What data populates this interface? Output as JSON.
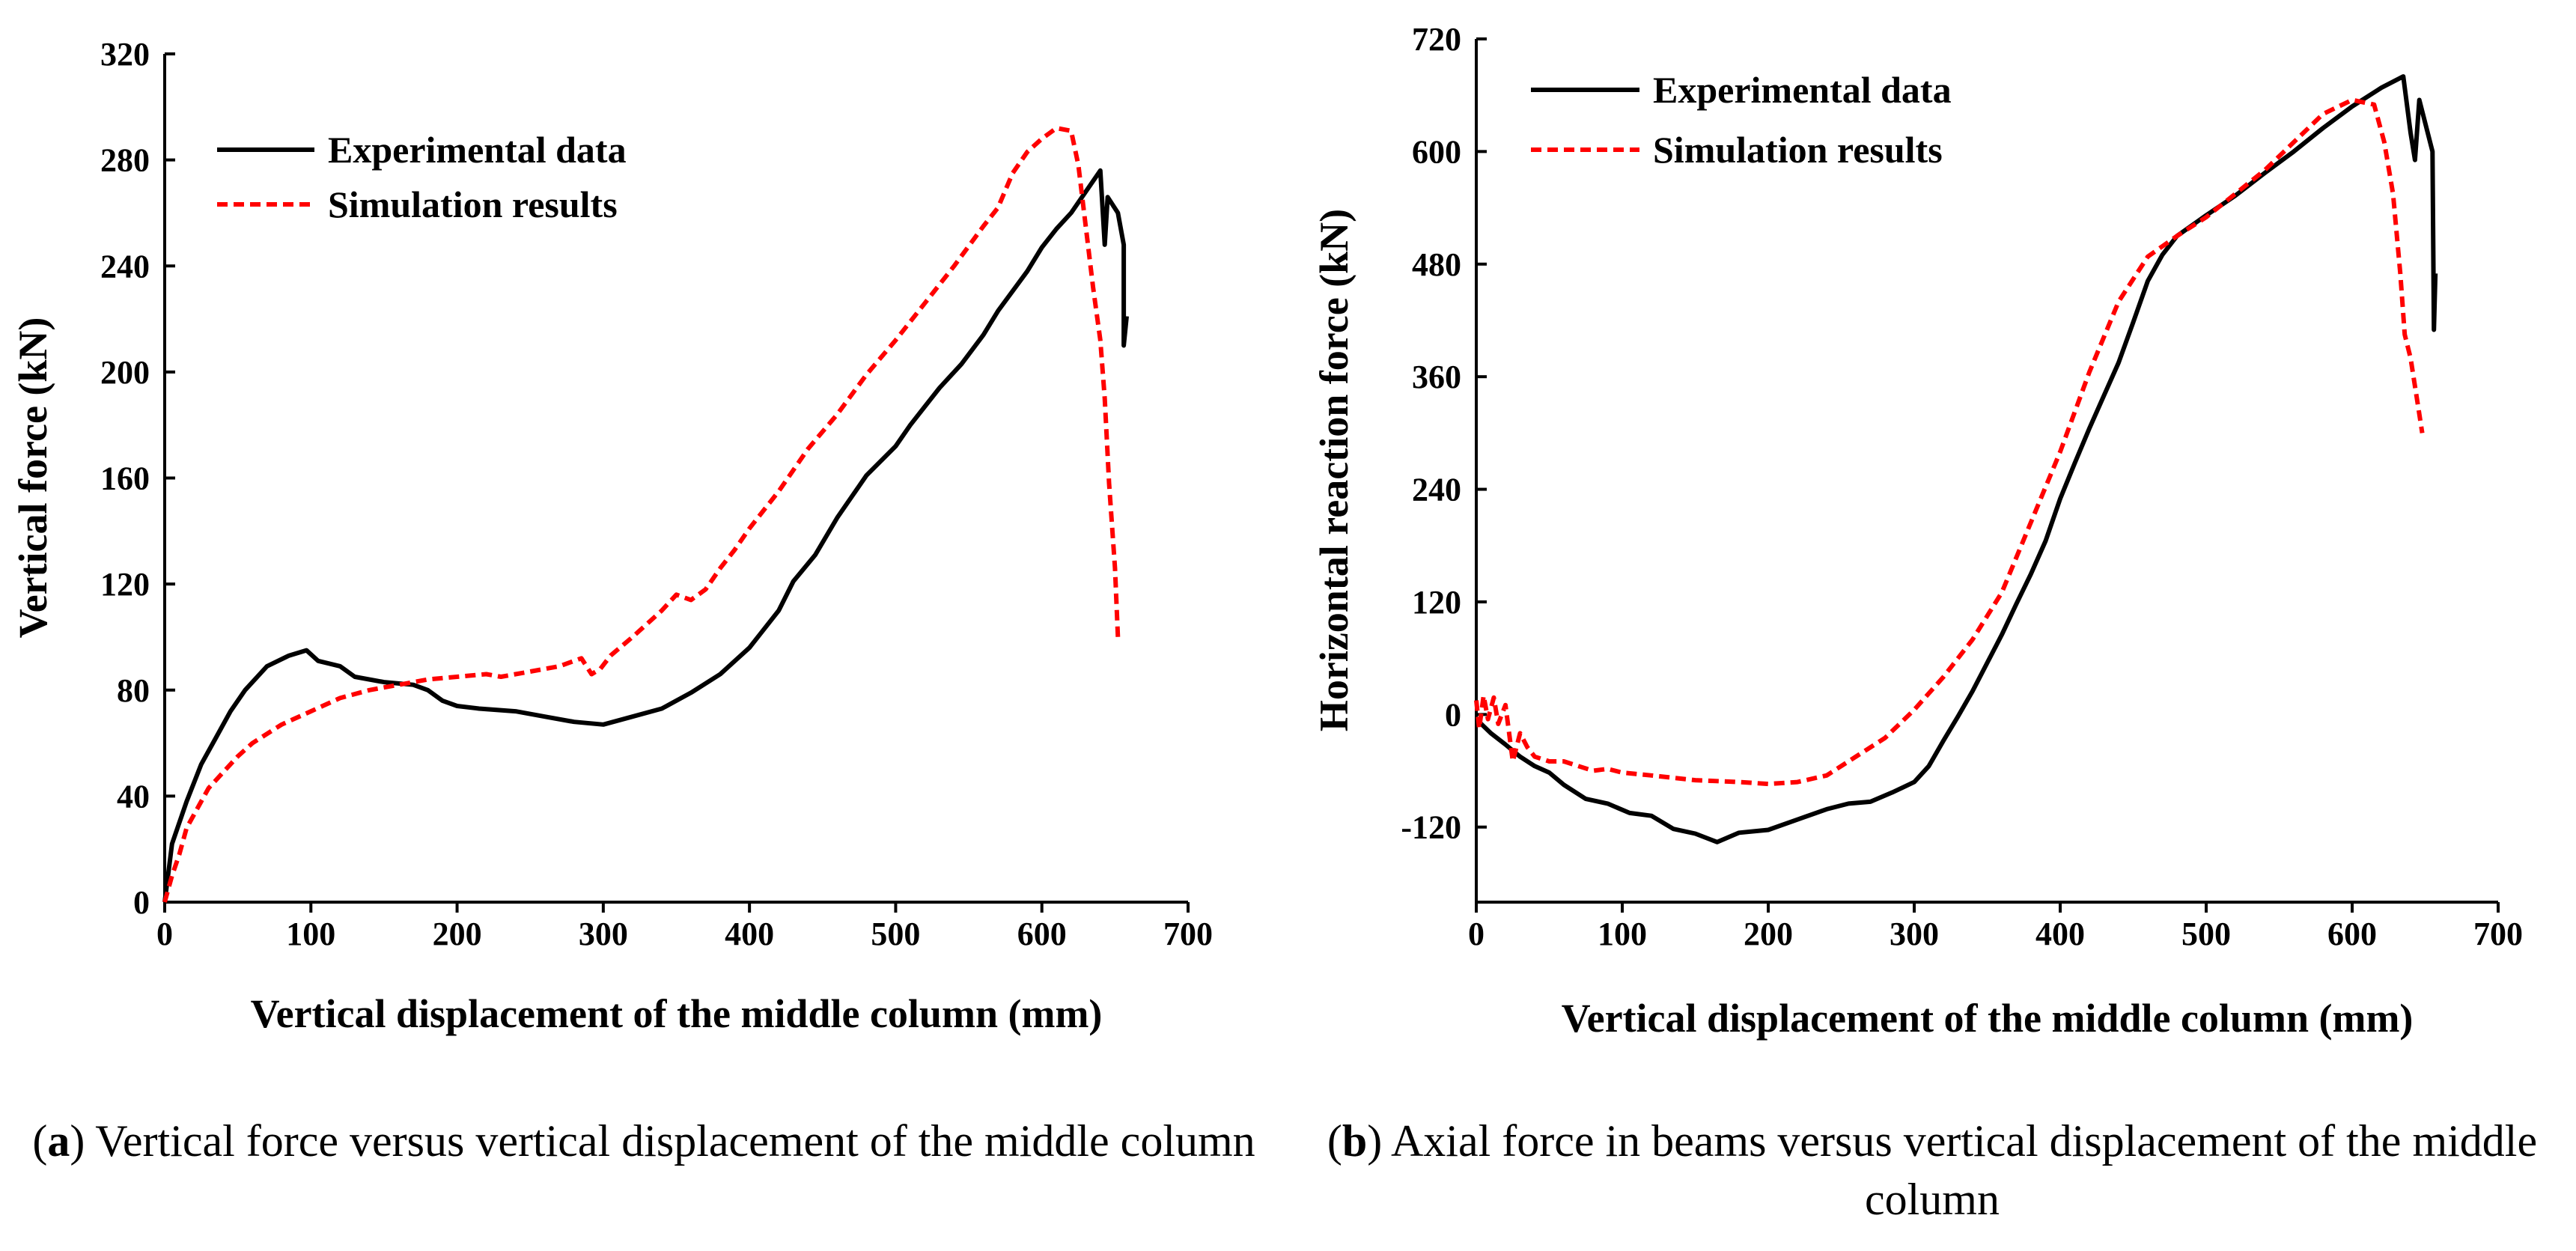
{
  "chart_data": [
    {
      "type": "line",
      "xlabel": "Vertical displacement of the middle column (mm)",
      "ylabel": "Vertical force (kN)",
      "xlim": [
        0,
        700
      ],
      "ylim": [
        0,
        320
      ],
      "xticks": [
        0,
        100,
        200,
        300,
        400,
        500,
        600,
        700
      ],
      "yticks": [
        0,
        40,
        80,
        120,
        160,
        200,
        240,
        280,
        320
      ],
      "legend_position": "top-left",
      "series": [
        {
          "name": "Experimental data",
          "color": "#000000",
          "style": "solid",
          "points": [
            [
              0,
              0
            ],
            [
              5,
              22
            ],
            [
              15,
              38
            ],
            [
              25,
              52
            ],
            [
              35,
              62
            ],
            [
              45,
              72
            ],
            [
              55,
              80
            ],
            [
              70,
              89
            ],
            [
              85,
              93
            ],
            [
              97,
              95
            ],
            [
              105,
              91
            ],
            [
              120,
              89
            ],
            [
              130,
              85
            ],
            [
              150,
              83
            ],
            [
              170,
              82
            ],
            [
              180,
              80
            ],
            [
              190,
              76
            ],
            [
              200,
              74
            ],
            [
              215,
              73
            ],
            [
              240,
              72
            ],
            [
              260,
              70
            ],
            [
              280,
              68
            ],
            [
              300,
              67
            ],
            [
              320,
              70
            ],
            [
              340,
              73
            ],
            [
              360,
              79
            ],
            [
              380,
              86
            ],
            [
              400,
              96
            ],
            [
              420,
              110
            ],
            [
              430,
              121
            ],
            [
              445,
              131
            ],
            [
              460,
              145
            ],
            [
              480,
              161
            ],
            [
              500,
              172
            ],
            [
              510,
              180
            ],
            [
              520,
              187
            ],
            [
              530,
              194
            ],
            [
              545,
              203
            ],
            [
              560,
              214
            ],
            [
              570,
              223
            ],
            [
              590,
              238
            ],
            [
              600,
              247
            ],
            [
              610,
              254
            ],
            [
              620,
              260
            ],
            [
              640,
              276
            ],
            [
              643,
              248
            ],
            [
              645,
              266
            ],
            [
              652,
              260
            ],
            [
              656,
              248
            ],
            [
              656,
              210
            ],
            [
              658,
              221
            ]
          ]
        },
        {
          "name": "Simulation results",
          "color": "#ff0000",
          "style": "dashed",
          "points": [
            [
              0,
              0
            ],
            [
              5,
              10
            ],
            [
              10,
              18
            ],
            [
              15,
              28
            ],
            [
              20,
              33
            ],
            [
              25,
              38
            ],
            [
              30,
              43
            ],
            [
              40,
              49
            ],
            [
              50,
              55
            ],
            [
              60,
              60
            ],
            [
              80,
              67
            ],
            [
              100,
              72
            ],
            [
              120,
              77
            ],
            [
              140,
              80
            ],
            [
              160,
              82
            ],
            [
              180,
              84
            ],
            [
              200,
              85
            ],
            [
              220,
              86
            ],
            [
              230,
              85
            ],
            [
              240,
              86
            ],
            [
              250,
              87
            ],
            [
              270,
              89
            ],
            [
              285,
              92
            ],
            [
              292,
              86
            ],
            [
              298,
              88
            ],
            [
              305,
              93
            ],
            [
              320,
              100
            ],
            [
              340,
              110
            ],
            [
              350,
              116
            ],
            [
              360,
              114
            ],
            [
              370,
              118
            ],
            [
              380,
              126
            ],
            [
              390,
              133
            ],
            [
              400,
              141
            ],
            [
              420,
              155
            ],
            [
              440,
              171
            ],
            [
              460,
              184
            ],
            [
              480,
              199
            ],
            [
              500,
              212
            ],
            [
              520,
              226
            ],
            [
              540,
              240
            ],
            [
              560,
              255
            ],
            [
              570,
              262
            ],
            [
              580,
              275
            ],
            [
              590,
              283
            ],
            [
              600,
              288
            ],
            [
              610,
              292
            ],
            [
              620,
              291
            ],
            [
              625,
              278
            ],
            [
              630,
              255
            ],
            [
              635,
              232
            ],
            [
              640,
              212
            ],
            [
              643,
              190
            ],
            [
              646,
              158
            ],
            [
              650,
              126
            ],
            [
              652,
              100
            ]
          ]
        }
      ]
    },
    {
      "type": "line",
      "xlabel": "Vertical displacement of the middle column (mm)",
      "ylabel": "Horizontal reaction force (kN)",
      "xlim": [
        0,
        700
      ],
      "ylim": [
        -200,
        720
      ],
      "xticks": [
        0,
        100,
        200,
        300,
        400,
        500,
        600,
        700
      ],
      "yticks": [
        -120,
        0,
        120,
        240,
        360,
        480,
        600,
        720
      ],
      "legend_position": "top-left",
      "series": [
        {
          "name": "Experimental data",
          "color": "#000000",
          "style": "solid",
          "points": [
            [
              0,
              -5
            ],
            [
              10,
              -20
            ],
            [
              20,
              -32
            ],
            [
              30,
              -45
            ],
            [
              40,
              -55
            ],
            [
              50,
              -62
            ],
            [
              60,
              -75
            ],
            [
              75,
              -90
            ],
            [
              90,
              -95
            ],
            [
              105,
              -105
            ],
            [
              120,
              -108
            ],
            [
              135,
              -122
            ],
            [
              150,
              -127
            ],
            [
              165,
              -136
            ],
            [
              180,
              -126
            ],
            [
              200,
              -123
            ],
            [
              220,
              -112
            ],
            [
              240,
              -101
            ],
            [
              255,
              -95
            ],
            [
              270,
              -93
            ],
            [
              285,
              -83
            ],
            [
              300,
              -72
            ],
            [
              310,
              -55
            ],
            [
              320,
              -28
            ],
            [
              330,
              -2
            ],
            [
              340,
              25
            ],
            [
              350,
              55
            ],
            [
              360,
              85
            ],
            [
              370,
              118
            ],
            [
              380,
              150
            ],
            [
              390,
              185
            ],
            [
              400,
              230
            ],
            [
              410,
              268
            ],
            [
              420,
              305
            ],
            [
              430,
              340
            ],
            [
              440,
              375
            ],
            [
              450,
              418
            ],
            [
              460,
              462
            ],
            [
              470,
              490
            ],
            [
              480,
              510
            ],
            [
              500,
              532
            ],
            [
              520,
              553
            ],
            [
              540,
              577
            ],
            [
              560,
              600
            ],
            [
              580,
              625
            ],
            [
              600,
              648
            ],
            [
              620,
              668
            ],
            [
              635,
              680
            ],
            [
              640,
              620
            ],
            [
              643,
              591
            ],
            [
              646,
              655
            ],
            [
              655,
              600
            ],
            [
              656,
              410
            ],
            [
              657,
              470
            ]
          ]
        },
        {
          "name": "Simulation results",
          "color": "#ff0000",
          "style": "dashed",
          "points": [
            [
              0,
              15
            ],
            [
              2,
              -15
            ],
            [
              5,
              20
            ],
            [
              8,
              -5
            ],
            [
              12,
              18
            ],
            [
              15,
              -10
            ],
            [
              20,
              10
            ],
            [
              25,
              -50
            ],
            [
              30,
              -20
            ],
            [
              35,
              -35
            ],
            [
              40,
              -45
            ],
            [
              50,
              -50
            ],
            [
              60,
              -50
            ],
            [
              70,
              -55
            ],
            [
              80,
              -60
            ],
            [
              90,
              -58
            ],
            [
              100,
              -62
            ],
            [
              120,
              -65
            ],
            [
              150,
              -70
            ],
            [
              180,
              -72
            ],
            [
              200,
              -74
            ],
            [
              220,
              -72
            ],
            [
              240,
              -65
            ],
            [
              260,
              -45
            ],
            [
              280,
              -25
            ],
            [
              300,
              5
            ],
            [
              320,
              40
            ],
            [
              340,
              80
            ],
            [
              360,
              130
            ],
            [
              380,
              205
            ],
            [
              400,
              280
            ],
            [
              420,
              365
            ],
            [
              440,
              440
            ],
            [
              460,
              488
            ],
            [
              480,
              510
            ],
            [
              500,
              530
            ],
            [
              520,
              555
            ],
            [
              540,
              580
            ],
            [
              560,
              610
            ],
            [
              580,
              640
            ],
            [
              600,
              655
            ],
            [
              615,
              650
            ],
            [
              622,
              610
            ],
            [
              628,
              555
            ],
            [
              633,
              470
            ],
            [
              636,
              405
            ],
            [
              640,
              380
            ],
            [
              645,
              330
            ],
            [
              648,
              300
            ]
          ]
        }
      ]
    }
  ],
  "captions": [
    {
      "letter": "a",
      "text": " Vertical force versus vertical displacement of the middle column"
    },
    {
      "letter": "b",
      "text": " Axial force in beams versus vertical displacement of the middle column"
    }
  ]
}
